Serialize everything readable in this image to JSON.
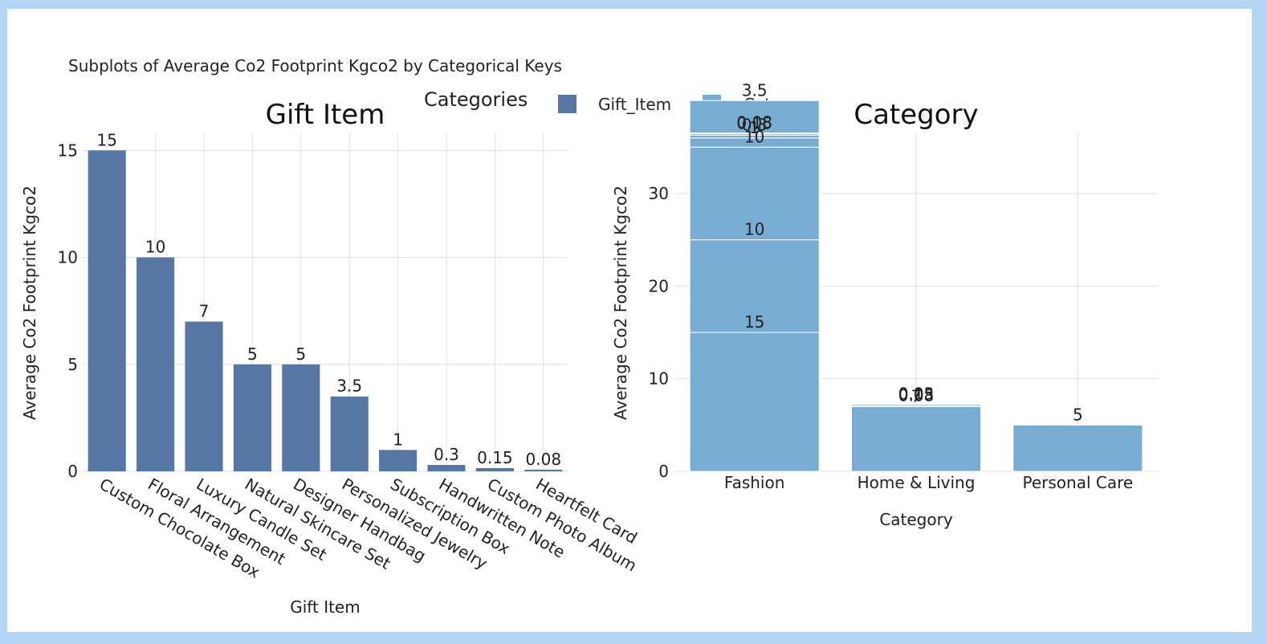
{
  "title": "Subplots of Average Co2 Footprint Kgco2 by Categorical Keys",
  "legend": {
    "title": "Categories",
    "items": [
      {
        "label": "Gift_Item",
        "color": "#5677a4"
      },
      {
        "label": "Category",
        "color": "#79acd3"
      }
    ]
  },
  "chart_data": [
    {
      "type": "bar",
      "title": "Gift Item",
      "xlabel": "Gift Item",
      "ylabel": "Average Co2 Footprint Kgco2",
      "color": "#5677a4",
      "ylim": [
        0,
        15.8
      ],
      "yticks": [
        0,
        5,
        10,
        15
      ],
      "categories": [
        "Custom Chocolate Box",
        "Floral Arrangement",
        "Luxury Candle Set",
        "Natural Skincare Set",
        "Designer Handbag",
        "Personalized Jewelry",
        "Subscription Box",
        "Handwritten Note",
        "Custom Photo Album",
        "Heartfelt Card"
      ],
      "values": [
        15,
        10,
        7,
        5,
        5,
        3.5,
        1,
        0.3,
        0.15,
        0.08
      ],
      "labels": [
        "15",
        "10",
        "7",
        "5",
        "5",
        "3.5",
        "1",
        "0.3",
        "0.15",
        "0.08"
      ]
    },
    {
      "type": "bar",
      "stacked": true,
      "title": "Category",
      "xlabel": "Category",
      "ylabel": "Average Co2 Footprint Kgco2",
      "color": "#79acd3",
      "ylim": [
        0,
        36.5
      ],
      "yticks": [
        0,
        10,
        20,
        30
      ],
      "categories": [
        "Fashion",
        "Home & Living",
        "Personal Care"
      ],
      "stacks": [
        {
          "values": [
            15,
            10,
            10,
            1,
            0.3,
            0.15,
            0.08,
            3.5
          ],
          "labels": [
            "15",
            "10",
            "10",
            "1",
            "0.3",
            "0.15",
            "0.08",
            "3.5"
          ]
        },
        {
          "values": [
            7,
            0.08,
            0.15,
            0.03
          ],
          "labels": [
            "7",
            "0.08",
            "0.15",
            "0.03"
          ]
        },
        {
          "values": [
            5
          ],
          "labels": [
            "5"
          ]
        }
      ]
    }
  ]
}
